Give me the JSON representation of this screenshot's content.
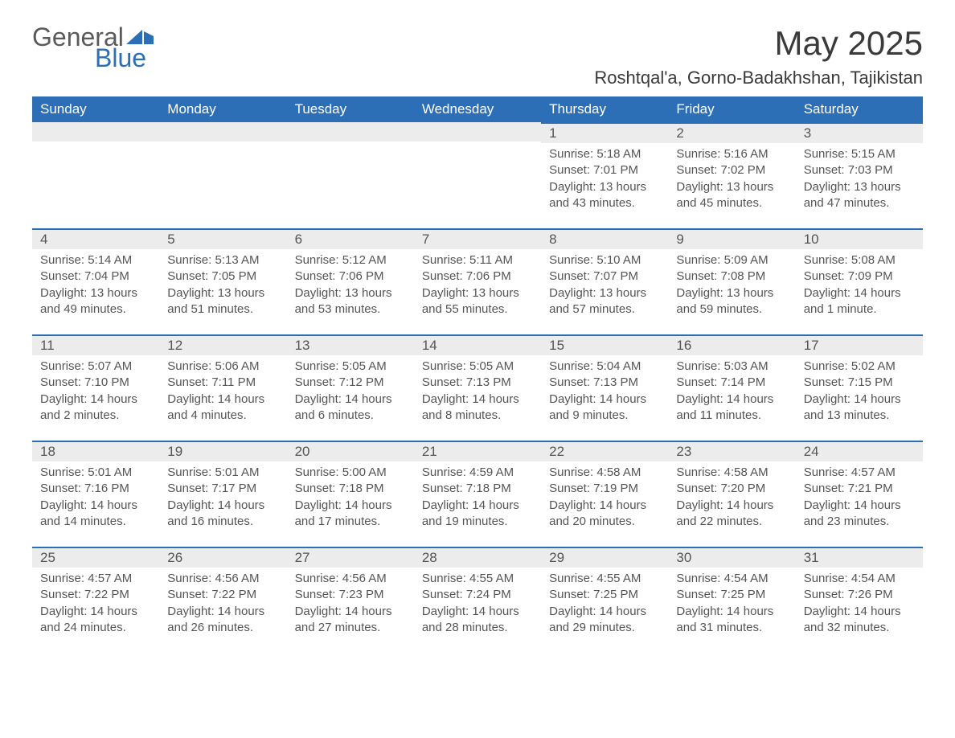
{
  "logo": {
    "text1": "General",
    "text2": "Blue",
    "color1": "#5a5a5a",
    "color2": "#2d6fb6"
  },
  "title": "May 2025",
  "location": "Roshtqal'a, Gorno-Badakhshan, Tajikistan",
  "style": {
    "header_bg": "#2d6fb6",
    "header_fg": "#ffffff",
    "daybar_bg": "#ececec",
    "dayrule_color": "#2d6fb6",
    "text_color": "#555555",
    "title_fontsize": 42,
    "location_fontsize": 22,
    "weekday_fontsize": 17,
    "daynum_fontsize": 17,
    "body_fontsize": 15
  },
  "weekdays": [
    "Sunday",
    "Monday",
    "Tuesday",
    "Wednesday",
    "Thursday",
    "Friday",
    "Saturday"
  ],
  "weeks": [
    [
      {
        "blank": true
      },
      {
        "blank": true
      },
      {
        "blank": true
      },
      {
        "blank": true
      },
      {
        "day": "1",
        "sunrise": "Sunrise: 5:18 AM",
        "sunset": "Sunset: 7:01 PM",
        "daylight": "Daylight: 13 hours and 43 minutes."
      },
      {
        "day": "2",
        "sunrise": "Sunrise: 5:16 AM",
        "sunset": "Sunset: 7:02 PM",
        "daylight": "Daylight: 13 hours and 45 minutes."
      },
      {
        "day": "3",
        "sunrise": "Sunrise: 5:15 AM",
        "sunset": "Sunset: 7:03 PM",
        "daylight": "Daylight: 13 hours and 47 minutes."
      }
    ],
    [
      {
        "day": "4",
        "sunrise": "Sunrise: 5:14 AM",
        "sunset": "Sunset: 7:04 PM",
        "daylight": "Daylight: 13 hours and 49 minutes."
      },
      {
        "day": "5",
        "sunrise": "Sunrise: 5:13 AM",
        "sunset": "Sunset: 7:05 PM",
        "daylight": "Daylight: 13 hours and 51 minutes."
      },
      {
        "day": "6",
        "sunrise": "Sunrise: 5:12 AM",
        "sunset": "Sunset: 7:06 PM",
        "daylight": "Daylight: 13 hours and 53 minutes."
      },
      {
        "day": "7",
        "sunrise": "Sunrise: 5:11 AM",
        "sunset": "Sunset: 7:06 PM",
        "daylight": "Daylight: 13 hours and 55 minutes."
      },
      {
        "day": "8",
        "sunrise": "Sunrise: 5:10 AM",
        "sunset": "Sunset: 7:07 PM",
        "daylight": "Daylight: 13 hours and 57 minutes."
      },
      {
        "day": "9",
        "sunrise": "Sunrise: 5:09 AM",
        "sunset": "Sunset: 7:08 PM",
        "daylight": "Daylight: 13 hours and 59 minutes."
      },
      {
        "day": "10",
        "sunrise": "Sunrise: 5:08 AM",
        "sunset": "Sunset: 7:09 PM",
        "daylight": "Daylight: 14 hours and 1 minute."
      }
    ],
    [
      {
        "day": "11",
        "sunrise": "Sunrise: 5:07 AM",
        "sunset": "Sunset: 7:10 PM",
        "daylight": "Daylight: 14 hours and 2 minutes."
      },
      {
        "day": "12",
        "sunrise": "Sunrise: 5:06 AM",
        "sunset": "Sunset: 7:11 PM",
        "daylight": "Daylight: 14 hours and 4 minutes."
      },
      {
        "day": "13",
        "sunrise": "Sunrise: 5:05 AM",
        "sunset": "Sunset: 7:12 PM",
        "daylight": "Daylight: 14 hours and 6 minutes."
      },
      {
        "day": "14",
        "sunrise": "Sunrise: 5:05 AM",
        "sunset": "Sunset: 7:13 PM",
        "daylight": "Daylight: 14 hours and 8 minutes."
      },
      {
        "day": "15",
        "sunrise": "Sunrise: 5:04 AM",
        "sunset": "Sunset: 7:13 PM",
        "daylight": "Daylight: 14 hours and 9 minutes."
      },
      {
        "day": "16",
        "sunrise": "Sunrise: 5:03 AM",
        "sunset": "Sunset: 7:14 PM",
        "daylight": "Daylight: 14 hours and 11 minutes."
      },
      {
        "day": "17",
        "sunrise": "Sunrise: 5:02 AM",
        "sunset": "Sunset: 7:15 PM",
        "daylight": "Daylight: 14 hours and 13 minutes."
      }
    ],
    [
      {
        "day": "18",
        "sunrise": "Sunrise: 5:01 AM",
        "sunset": "Sunset: 7:16 PM",
        "daylight": "Daylight: 14 hours and 14 minutes."
      },
      {
        "day": "19",
        "sunrise": "Sunrise: 5:01 AM",
        "sunset": "Sunset: 7:17 PM",
        "daylight": "Daylight: 14 hours and 16 minutes."
      },
      {
        "day": "20",
        "sunrise": "Sunrise: 5:00 AM",
        "sunset": "Sunset: 7:18 PM",
        "daylight": "Daylight: 14 hours and 17 minutes."
      },
      {
        "day": "21",
        "sunrise": "Sunrise: 4:59 AM",
        "sunset": "Sunset: 7:18 PM",
        "daylight": "Daylight: 14 hours and 19 minutes."
      },
      {
        "day": "22",
        "sunrise": "Sunrise: 4:58 AM",
        "sunset": "Sunset: 7:19 PM",
        "daylight": "Daylight: 14 hours and 20 minutes."
      },
      {
        "day": "23",
        "sunrise": "Sunrise: 4:58 AM",
        "sunset": "Sunset: 7:20 PM",
        "daylight": "Daylight: 14 hours and 22 minutes."
      },
      {
        "day": "24",
        "sunrise": "Sunrise: 4:57 AM",
        "sunset": "Sunset: 7:21 PM",
        "daylight": "Daylight: 14 hours and 23 minutes."
      }
    ],
    [
      {
        "day": "25",
        "sunrise": "Sunrise: 4:57 AM",
        "sunset": "Sunset: 7:22 PM",
        "daylight": "Daylight: 14 hours and 24 minutes."
      },
      {
        "day": "26",
        "sunrise": "Sunrise: 4:56 AM",
        "sunset": "Sunset: 7:22 PM",
        "daylight": "Daylight: 14 hours and 26 minutes."
      },
      {
        "day": "27",
        "sunrise": "Sunrise: 4:56 AM",
        "sunset": "Sunset: 7:23 PM",
        "daylight": "Daylight: 14 hours and 27 minutes."
      },
      {
        "day": "28",
        "sunrise": "Sunrise: 4:55 AM",
        "sunset": "Sunset: 7:24 PM",
        "daylight": "Daylight: 14 hours and 28 minutes."
      },
      {
        "day": "29",
        "sunrise": "Sunrise: 4:55 AM",
        "sunset": "Sunset: 7:25 PM",
        "daylight": "Daylight: 14 hours and 29 minutes."
      },
      {
        "day": "30",
        "sunrise": "Sunrise: 4:54 AM",
        "sunset": "Sunset: 7:25 PM",
        "daylight": "Daylight: 14 hours and 31 minutes."
      },
      {
        "day": "31",
        "sunrise": "Sunrise: 4:54 AM",
        "sunset": "Sunset: 7:26 PM",
        "daylight": "Daylight: 14 hours and 32 minutes."
      }
    ]
  ]
}
